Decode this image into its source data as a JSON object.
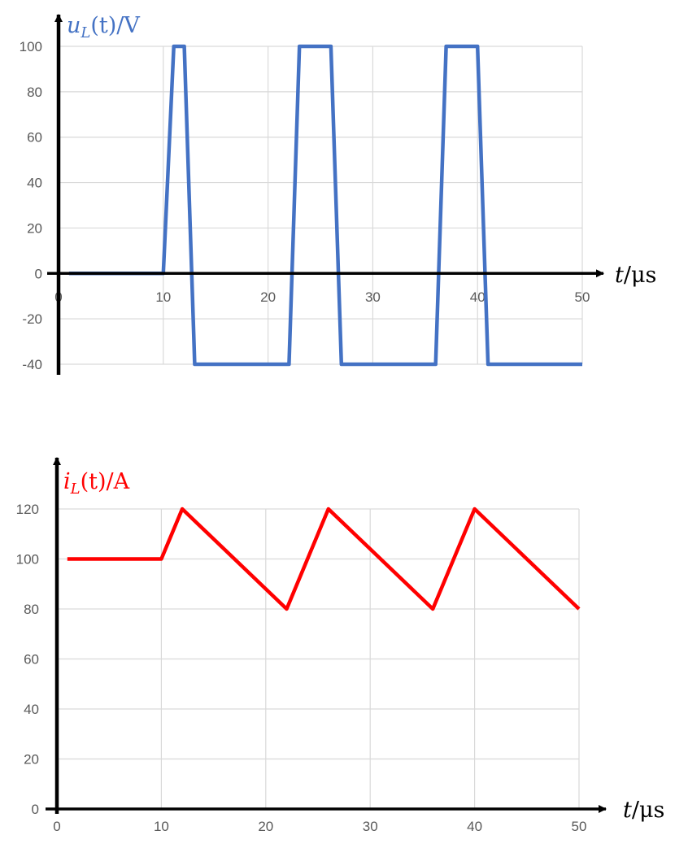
{
  "chart_data": [
    {
      "type": "line",
      "title": "",
      "ylabel": "u_L(t)/V",
      "xlabel": "t/μs",
      "ylabel_parts": {
        "main": "u",
        "sub": "L",
        "rest": "(t)/V"
      },
      "xlabel_parts": {
        "main": "t",
        "rest": "/μs"
      },
      "xlim": [
        0,
        50
      ],
      "ylim": [
        -40,
        100
      ],
      "x_ticks": [
        "0",
        "10",
        "20",
        "30",
        "40",
        "50"
      ],
      "y_ticks": [
        "-40",
        "-20",
        "0",
        "20",
        "40",
        "60",
        "80",
        "100"
      ],
      "grid": true,
      "color": "#4472C4",
      "series": [
        {
          "x": [
            1,
            10,
            11,
            12,
            13,
            22,
            23,
            26,
            27,
            36,
            37,
            40,
            41,
            50
          ],
          "y": [
            0,
            0,
            100,
            100,
            -40,
            -40,
            100,
            100,
            -40,
            -40,
            100,
            100,
            -40,
            -40
          ]
        }
      ]
    },
    {
      "type": "line",
      "title": "",
      "ylabel": "i_L(t)/A",
      "xlabel": "t/μs",
      "ylabel_parts": {
        "main": "i",
        "sub": "L",
        "rest": "(t)/A"
      },
      "xlabel_parts": {
        "main": "t",
        "rest": "/μs"
      },
      "xlim": [
        0,
        50
      ],
      "ylim": [
        0,
        120
      ],
      "x_ticks": [
        "0",
        "10",
        "20",
        "30",
        "40",
        "50"
      ],
      "y_ticks": [
        "0",
        "20",
        "40",
        "60",
        "80",
        "100",
        "120"
      ],
      "grid": true,
      "color": "#FF0000",
      "series": [
        {
          "x": [
            1,
            10,
            12,
            22,
            26,
            36,
            40,
            50
          ],
          "y": [
            100,
            100,
            120,
            80,
            120,
            80,
            120,
            80
          ]
        }
      ]
    }
  ]
}
